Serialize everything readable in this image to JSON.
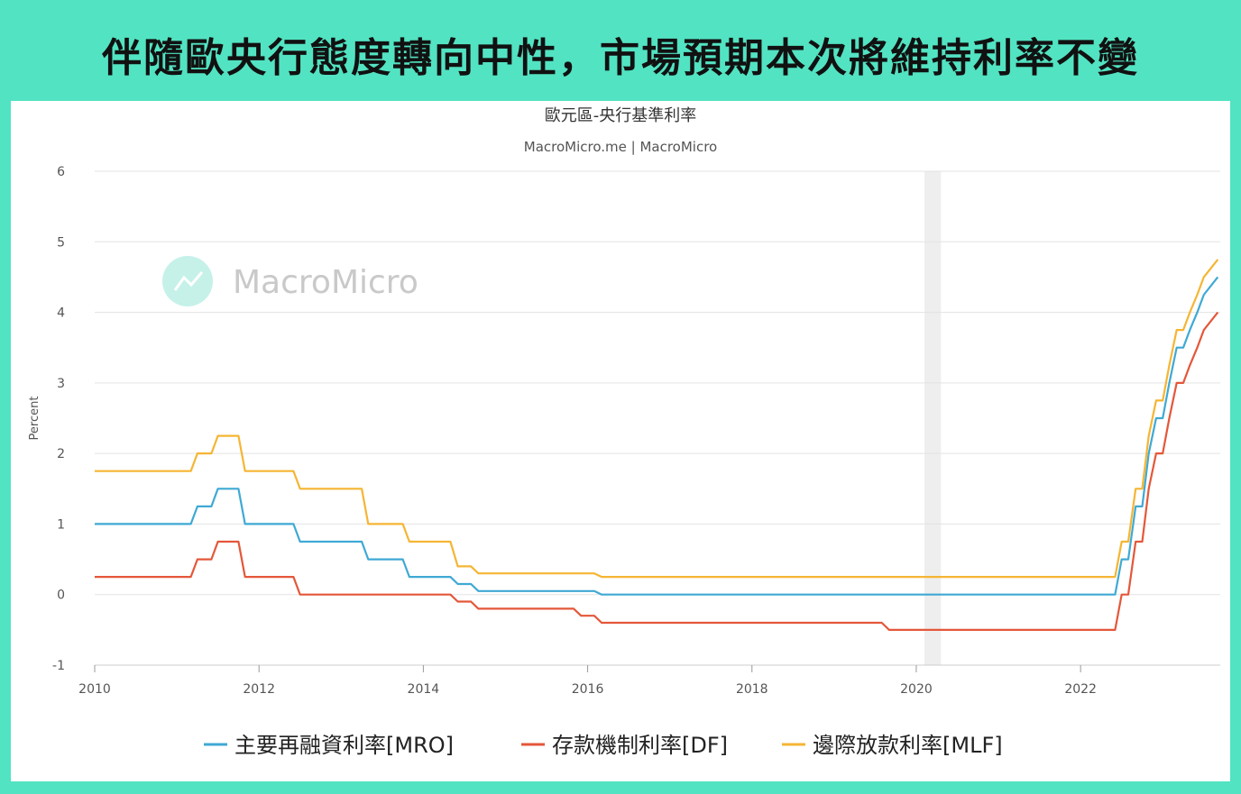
{
  "headline": "伴隨歐央行態度轉向中性，市場預期本次將維持利率不變",
  "chart_data": {
    "type": "line",
    "title": "歐元區-央行基準利率",
    "subtitle": "MacroMicro.me | MacroMicro",
    "watermark": "MacroMicro",
    "ylabel": "Percent",
    "xlabel": "",
    "xlim": [
      2010,
      2023.7
    ],
    "ylim": [
      -1,
      6
    ],
    "yticks": [
      -1,
      0,
      1,
      2,
      3,
      4,
      5,
      6
    ],
    "xticks": [
      2010,
      2012,
      2014,
      2016,
      2018,
      2020,
      2022
    ],
    "grid": true,
    "legend_position": "bottom",
    "shaded_period": [
      2020.1,
      2020.3
    ],
    "series": [
      {
        "name": "主要再融資利率[MRO]",
        "color": "#3fa9d4",
        "points": [
          [
            2010.0,
            1.0
          ],
          [
            2011.17,
            1.0
          ],
          [
            2011.25,
            1.25
          ],
          [
            2011.42,
            1.25
          ],
          [
            2011.5,
            1.5
          ],
          [
            2011.75,
            1.5
          ],
          [
            2011.83,
            1.0
          ],
          [
            2012.42,
            1.0
          ],
          [
            2012.5,
            0.75
          ],
          [
            2013.25,
            0.75
          ],
          [
            2013.33,
            0.5
          ],
          [
            2013.75,
            0.5
          ],
          [
            2013.83,
            0.25
          ],
          [
            2014.33,
            0.25
          ],
          [
            2014.42,
            0.15
          ],
          [
            2014.58,
            0.15
          ],
          [
            2014.67,
            0.05
          ],
          [
            2016.08,
            0.05
          ],
          [
            2016.17,
            0.0
          ],
          [
            2022.42,
            0.0
          ],
          [
            2022.5,
            0.5
          ],
          [
            2022.58,
            0.5
          ],
          [
            2022.67,
            1.25
          ],
          [
            2022.75,
            1.25
          ],
          [
            2022.83,
            2.0
          ],
          [
            2022.92,
            2.5
          ],
          [
            2023.0,
            2.5
          ],
          [
            2023.08,
            3.0
          ],
          [
            2023.17,
            3.5
          ],
          [
            2023.25,
            3.5
          ],
          [
            2023.33,
            3.75
          ],
          [
            2023.42,
            4.0
          ],
          [
            2023.5,
            4.25
          ],
          [
            2023.67,
            4.5
          ]
        ]
      },
      {
        "name": "存款機制利率[DF]",
        "color": "#e4573a",
        "points": [
          [
            2010.0,
            0.25
          ],
          [
            2011.17,
            0.25
          ],
          [
            2011.25,
            0.5
          ],
          [
            2011.42,
            0.5
          ],
          [
            2011.5,
            0.75
          ],
          [
            2011.75,
            0.75
          ],
          [
            2011.83,
            0.25
          ],
          [
            2012.42,
            0.25
          ],
          [
            2012.5,
            0.0
          ],
          [
            2014.33,
            0.0
          ],
          [
            2014.42,
            -0.1
          ],
          [
            2014.58,
            -0.1
          ],
          [
            2014.67,
            -0.2
          ],
          [
            2015.83,
            -0.2
          ],
          [
            2015.92,
            -0.3
          ],
          [
            2016.08,
            -0.3
          ],
          [
            2016.17,
            -0.4
          ],
          [
            2019.58,
            -0.4
          ],
          [
            2019.67,
            -0.5
          ],
          [
            2022.42,
            -0.5
          ],
          [
            2022.5,
            0.0
          ],
          [
            2022.58,
            0.0
          ],
          [
            2022.67,
            0.75
          ],
          [
            2022.75,
            0.75
          ],
          [
            2022.83,
            1.5
          ],
          [
            2022.92,
            2.0
          ],
          [
            2023.0,
            2.0
          ],
          [
            2023.08,
            2.5
          ],
          [
            2023.17,
            3.0
          ],
          [
            2023.25,
            3.0
          ],
          [
            2023.33,
            3.25
          ],
          [
            2023.42,
            3.5
          ],
          [
            2023.5,
            3.75
          ],
          [
            2023.67,
            4.0
          ]
        ]
      },
      {
        "name": "邊際放款利率[MLF]",
        "color": "#f5b533",
        "points": [
          [
            2010.0,
            1.75
          ],
          [
            2011.17,
            1.75
          ],
          [
            2011.25,
            2.0
          ],
          [
            2011.42,
            2.0
          ],
          [
            2011.5,
            2.25
          ],
          [
            2011.75,
            2.25
          ],
          [
            2011.83,
            1.75
          ],
          [
            2012.42,
            1.75
          ],
          [
            2012.5,
            1.5
          ],
          [
            2013.25,
            1.5
          ],
          [
            2013.33,
            1.0
          ],
          [
            2013.75,
            1.0
          ],
          [
            2013.83,
            0.75
          ],
          [
            2014.33,
            0.75
          ],
          [
            2014.42,
            0.4
          ],
          [
            2014.58,
            0.4
          ],
          [
            2014.67,
            0.3
          ],
          [
            2016.08,
            0.3
          ],
          [
            2016.17,
            0.25
          ],
          [
            2022.42,
            0.25
          ],
          [
            2022.5,
            0.75
          ],
          [
            2022.58,
            0.75
          ],
          [
            2022.67,
            1.5
          ],
          [
            2022.75,
            1.5
          ],
          [
            2022.83,
            2.25
          ],
          [
            2022.92,
            2.75
          ],
          [
            2023.0,
            2.75
          ],
          [
            2023.08,
            3.25
          ],
          [
            2023.17,
            3.75
          ],
          [
            2023.25,
            3.75
          ],
          [
            2023.33,
            4.0
          ],
          [
            2023.42,
            4.25
          ],
          [
            2023.5,
            4.5
          ],
          [
            2023.67,
            4.75
          ]
        ]
      }
    ]
  }
}
